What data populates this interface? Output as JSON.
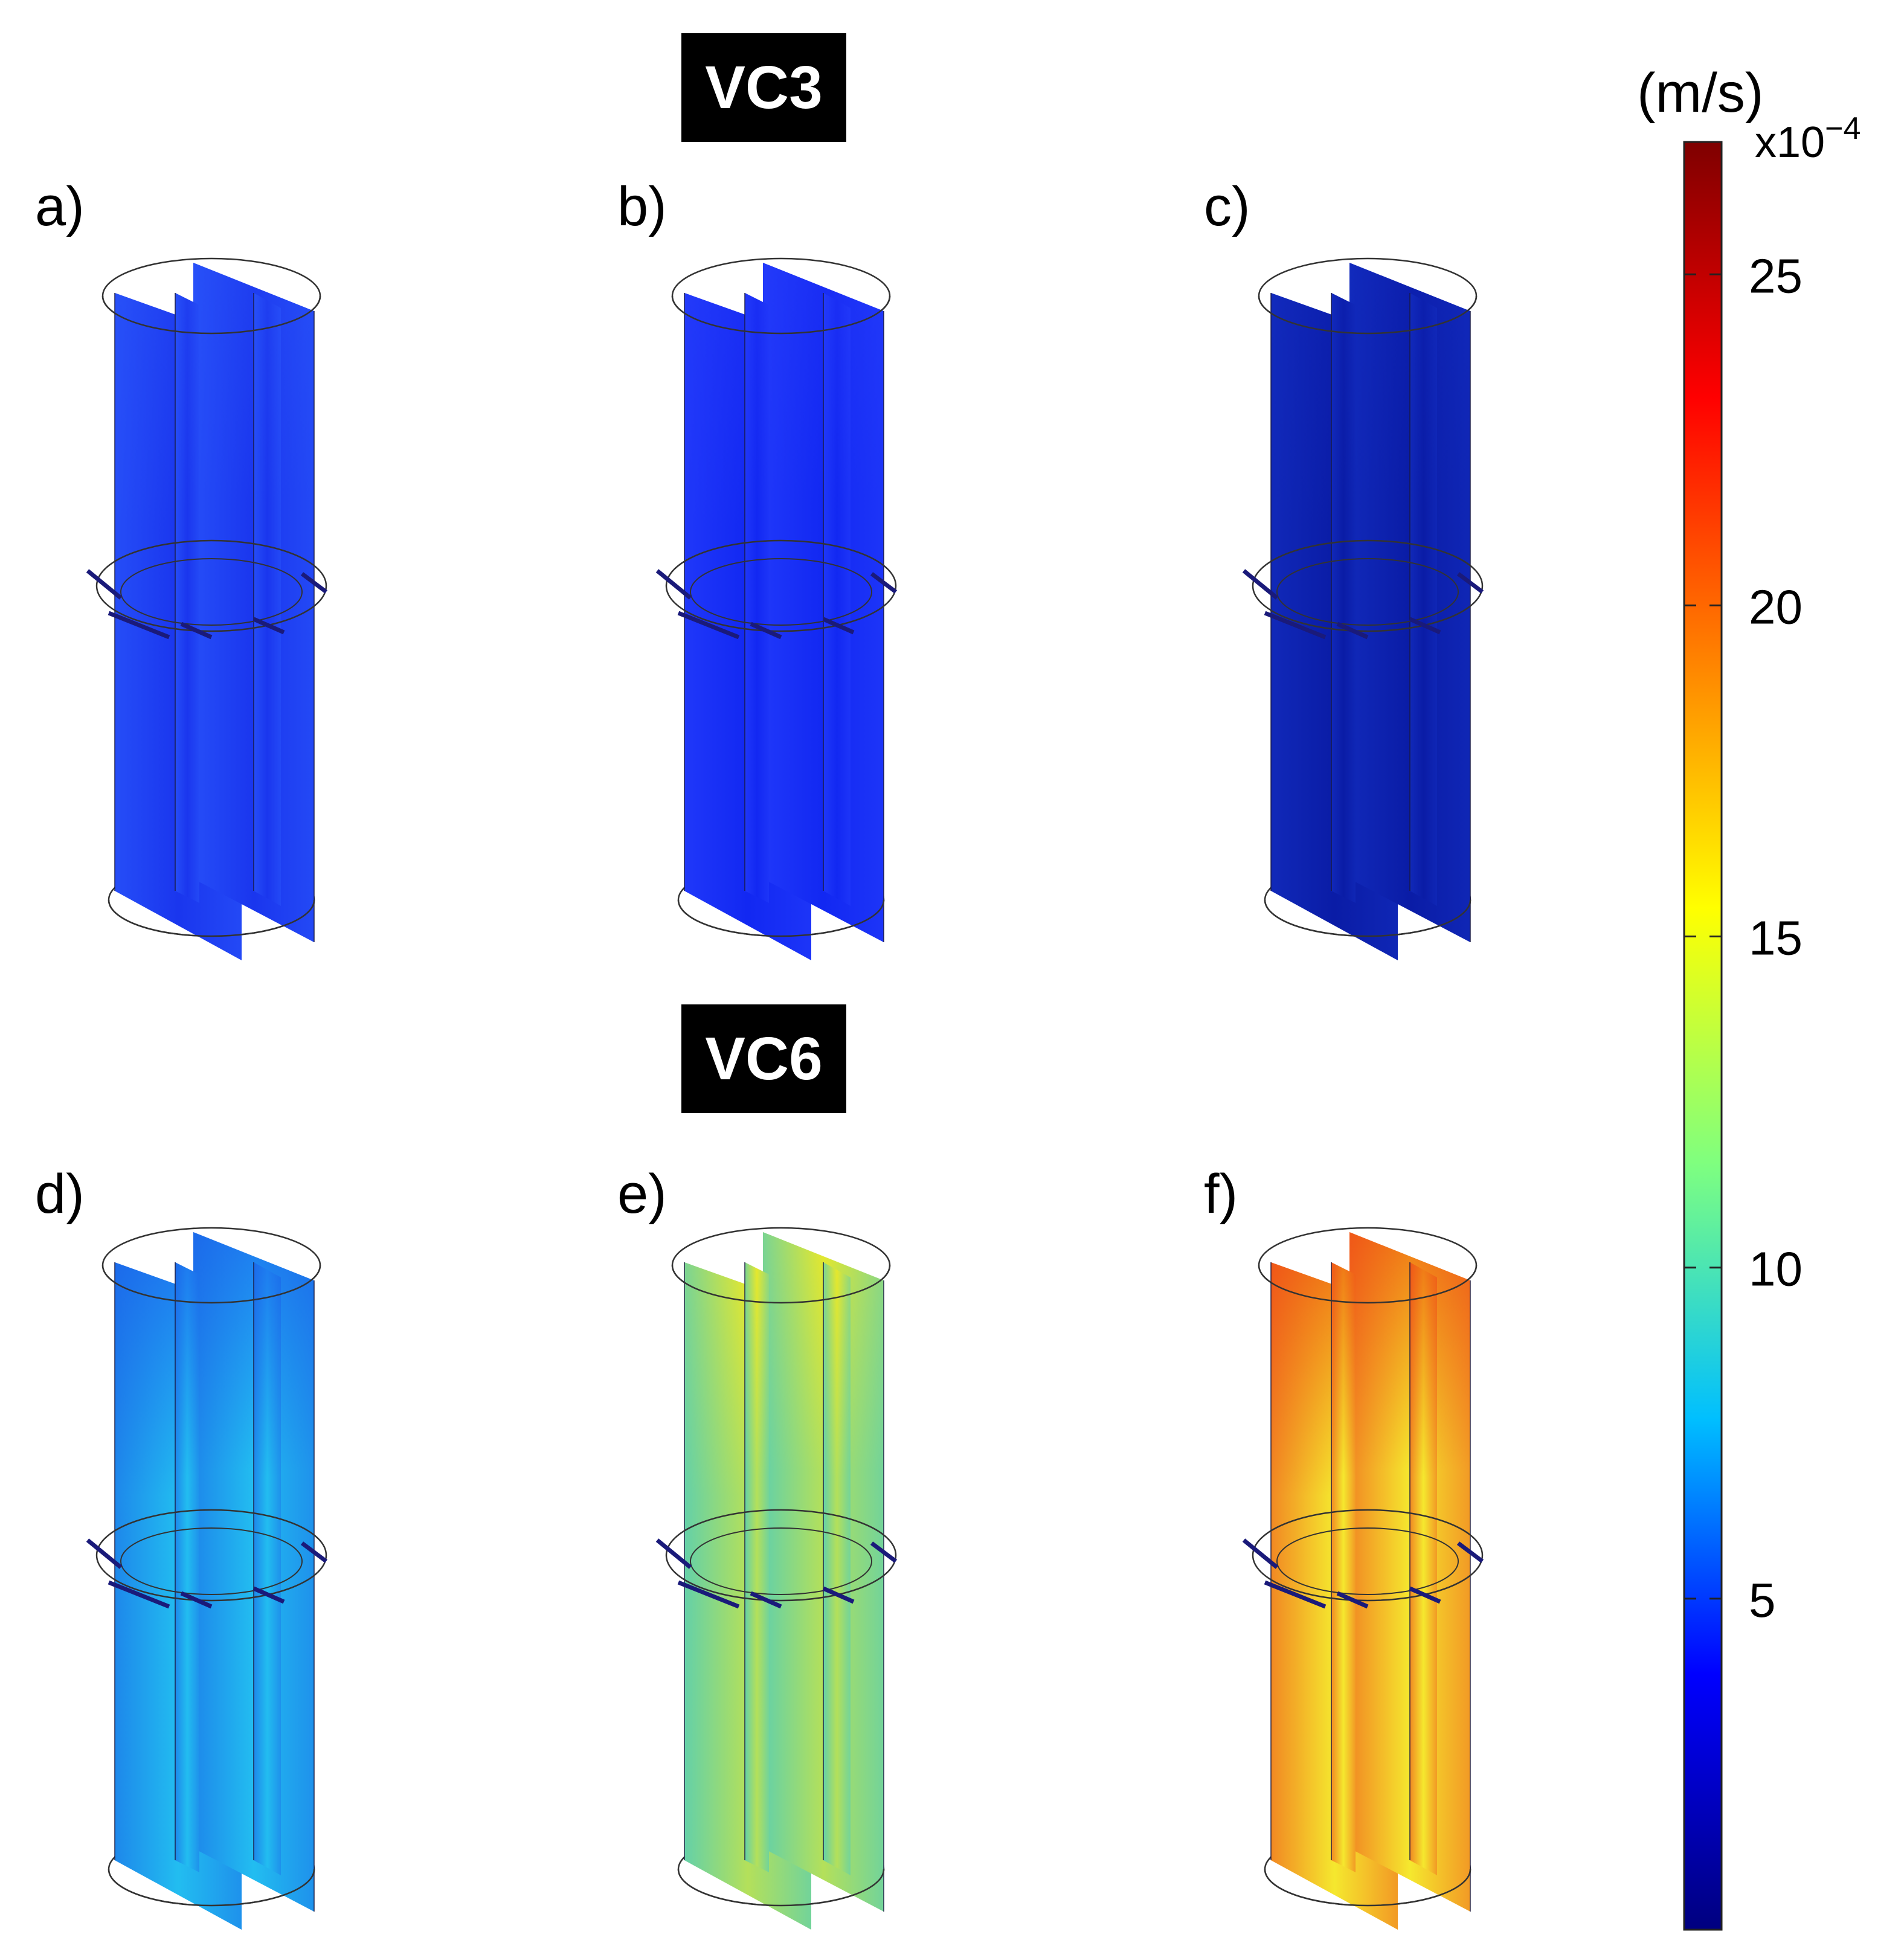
{
  "headers": {
    "top": "VC3",
    "bottom": "VC6"
  },
  "panels": [
    {
      "label": "a)",
      "top_color": "#1f3ef0",
      "body_color": "#1a36ee",
      "accent_color": "#2f60ff"
    },
    {
      "label": "b)",
      "top_color": "#1a2ef4",
      "body_color": "#1228f2",
      "accent_color": "#2a44ff"
    },
    {
      "label": "c)",
      "top_color": "#0c1fae",
      "body_color": "#0a1ca6",
      "accent_color": "#1633c8"
    },
    {
      "label": "d)",
      "top_color": "#1e7cf0",
      "body_color": "#22bdf0",
      "accent_color": "#1a5ce6"
    },
    {
      "label": "e)",
      "top_color": "#e8e82a",
      "body_color": "#b4e05a",
      "accent_color": "#22c4e8"
    },
    {
      "label": "f)",
      "top_color": "#f07a16",
      "body_color": "#f5e82e",
      "accent_color": "#ef3a1a"
    }
  ],
  "colorbar": {
    "unit": "(m/s)",
    "exponent_base": "x10",
    "exponent_power": "−4",
    "min": 0,
    "max": 27,
    "ticks": [
      "5",
      "10",
      "15",
      "20",
      "25"
    ],
    "tick_values": [
      5,
      10,
      15,
      20,
      25
    ],
    "colors": [
      "#00007f",
      "#0000ff",
      "#00bfff",
      "#7fff7f",
      "#ffff00",
      "#ff7f00",
      "#ff0000",
      "#7f0000"
    ]
  }
}
